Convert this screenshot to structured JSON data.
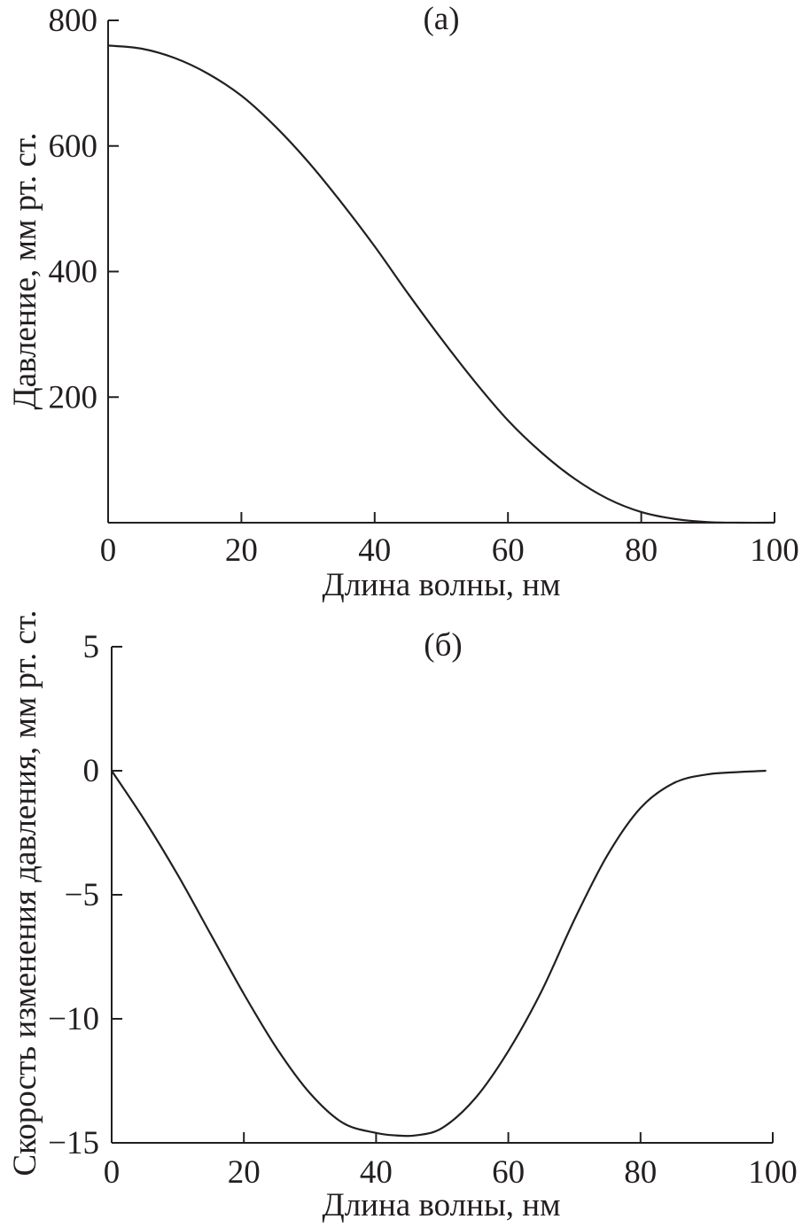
{
  "chart_data": [
    {
      "type": "line",
      "title": "(а)",
      "xlabel": "Длина волны, нм",
      "ylabel": "Давление, мм рт. ст.",
      "xlim": [
        0,
        100
      ],
      "ylim": [
        0,
        800
      ],
      "x_ticks": [
        "0",
        "20",
        "40",
        "60",
        "80",
        "100"
      ],
      "y_ticks": [
        "200",
        "400",
        "600",
        "800"
      ],
      "y_tick_values": [
        200,
        400,
        600,
        800
      ],
      "grid": false,
      "series": [
        {
          "x": [
            0,
            5,
            10,
            15,
            20,
            25,
            30,
            35,
            40,
            45,
            50,
            55,
            60,
            65,
            70,
            75,
            80,
            85,
            90,
            95,
            100
          ],
          "y": [
            760,
            755,
            740,
            715,
            680,
            632,
            575,
            510,
            440,
            365,
            293,
            225,
            163,
            112,
            70,
            38,
            17,
            6,
            1,
            0,
            0
          ]
        }
      ]
    },
    {
      "type": "line",
      "title": "(б)",
      "xlabel": "Длина волны, нм",
      "ylabel": "Скорость изменения давления, мм рт. ст.",
      "xlim": [
        0,
        100
      ],
      "ylim": [
        -15,
        5
      ],
      "x_ticks": [
        "0",
        "20",
        "40",
        "60",
        "80",
        "100"
      ],
      "y_ticks": [
        "5",
        "0",
        "−5",
        "−10",
        "−15"
      ],
      "y_tick_values": [
        5,
        0,
        -5,
        -10,
        -15
      ],
      "grid": false,
      "series": [
        {
          "x": [
            0,
            5,
            10,
            15,
            20,
            25,
            30,
            35,
            40,
            43,
            46,
            50,
            55,
            60,
            65,
            70,
            75,
            80,
            85,
            90,
            95,
            99
          ],
          "y": [
            0,
            -2.0,
            -4.2,
            -6.6,
            -9.0,
            -11.2,
            -13.0,
            -14.2,
            -14.6,
            -14.7,
            -14.7,
            -14.4,
            -13.2,
            -11.3,
            -8.9,
            -6.0,
            -3.4,
            -1.5,
            -0.5,
            -0.15,
            -0.05,
            0
          ]
        }
      ]
    }
  ]
}
